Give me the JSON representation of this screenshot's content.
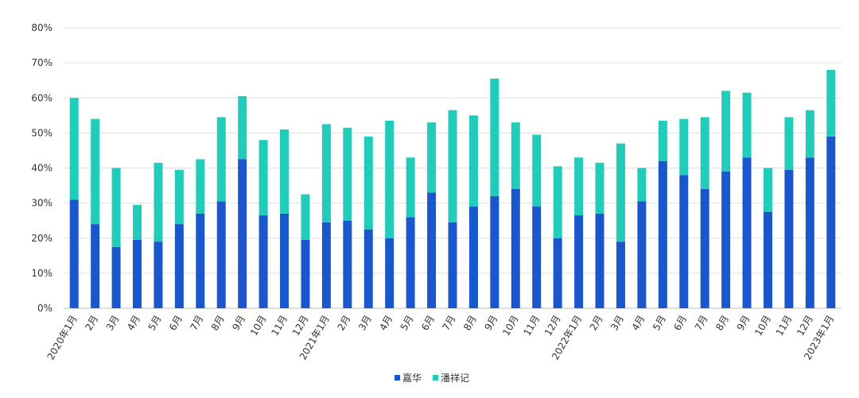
{
  "chart_data": {
    "type": "bar",
    "stacked": true,
    "title": "",
    "xlabel": "",
    "ylabel": "",
    "ylim": [
      0,
      80
    ],
    "y_ticks": [
      "0%",
      "10%",
      "20%",
      "30%",
      "40%",
      "50%",
      "60%",
      "70%",
      "80%"
    ],
    "grid": true,
    "legend_position": "bottom",
    "categories": [
      "2020年1月",
      "2月",
      "3月",
      "4月",
      "5月",
      "6月",
      "7月",
      "8月",
      "9月",
      "10月",
      "11月",
      "12月",
      "2021年1月",
      "2月",
      "3月",
      "4月",
      "5月",
      "6月",
      "7月",
      "8月",
      "9月",
      "10月",
      "11月",
      "12月",
      "2022年1月",
      "2月",
      "3月",
      "4月",
      "5月",
      "6月",
      "7月",
      "8月",
      "9月",
      "10月",
      "11月",
      "12月",
      "2023年1月"
    ],
    "series": [
      {
        "name": "嘉华",
        "color": "#1a56cc",
        "values": [
          31,
          24,
          17.5,
          19.5,
          19,
          24,
          27,
          30.5,
          42.5,
          26.5,
          27,
          19.5,
          24.5,
          25,
          22.5,
          20,
          26,
          33,
          24.5,
          29,
          32,
          34,
          29,
          20,
          26.5,
          27,
          19,
          30.5,
          42,
          38,
          34,
          39,
          43,
          27.5,
          39.5,
          43,
          49
        ]
      },
      {
        "name": "潘祥记",
        "color": "#22ccbb",
        "values": [
          29,
          30,
          22.5,
          10,
          22.5,
          15.5,
          15.5,
          24,
          18,
          21.5,
          24,
          13,
          28,
          26.5,
          26.5,
          33.5,
          17,
          20,
          32,
          26,
          33.5,
          19,
          20.5,
          20.5,
          16.5,
          14.5,
          28,
          9.5,
          11.5,
          16,
          20.5,
          23,
          18.5,
          12.5,
          15,
          13.5,
          19
        ]
      }
    ]
  }
}
